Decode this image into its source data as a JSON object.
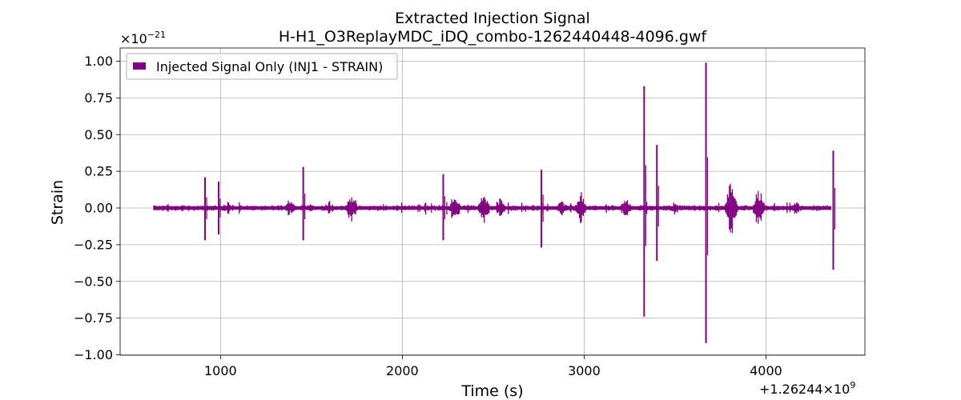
{
  "chart_data": {
    "type": "line",
    "title": "Extracted Injection Signal",
    "subtitle": "H-H1_O3ReplayMDC_iDQ_combo-1262440448-4096.gwf",
    "xlabel": "Time (s)",
    "ylabel": "Strain",
    "x_offset_label": "+1.26244×10",
    "x_offset_exponent": "9",
    "y_multiplier_label": "×10",
    "y_multiplier_exponent": "−21",
    "xlim": [
      448,
      4544
    ],
    "ylim": [
      -1.0,
      1.1
    ],
    "x_ticks": [
      1000,
      2000,
      3000,
      4000
    ],
    "x_tick_labels": [
      "1000",
      "2000",
      "3000",
      "4000"
    ],
    "y_ticks": [
      -1.0,
      -0.75,
      -0.5,
      -0.25,
      0.0,
      0.25,
      0.5,
      0.75,
      1.0
    ],
    "y_tick_labels": [
      "−1.00",
      "−0.75",
      "−0.50",
      "−0.25",
      "0.00",
      "0.25",
      "0.50",
      "0.75",
      "1.00"
    ],
    "grid": true,
    "legend_position": "top-left",
    "baseline_noise_amplitude": 0.012,
    "series": [
      {
        "name": "Injected Signal Only (INJ1 - STRAIN)",
        "color": "#800080",
        "spikes": [
          {
            "x": 915,
            "max": 0.21,
            "min": -0.22
          },
          {
            "x": 990,
            "max": 0.18,
            "min": -0.18
          },
          {
            "x": 1455,
            "max": 0.28,
            "min": -0.22
          },
          {
            "x": 2225,
            "max": 0.23,
            "min": -0.22
          },
          {
            "x": 2765,
            "max": 0.26,
            "min": -0.27
          },
          {
            "x": 3330,
            "max": 0.83,
            "min": -0.74
          },
          {
            "x": 3400,
            "max": 0.43,
            "min": -0.36
          },
          {
            "x": 3670,
            "max": 0.99,
            "min": -0.92
          },
          {
            "x": 4370,
            "max": 0.39,
            "min": -0.42
          }
        ],
        "bursts": [
          {
            "x": 600,
            "amp": 0.03
          },
          {
            "x": 1040,
            "amp": 0.04
          },
          {
            "x": 1380,
            "amp": 0.05
          },
          {
            "x": 1600,
            "amp": 0.05
          },
          {
            "x": 1720,
            "amp": 0.1
          },
          {
            "x": 2290,
            "amp": 0.1
          },
          {
            "x": 2450,
            "amp": 0.09
          },
          {
            "x": 2540,
            "amp": 0.07
          },
          {
            "x": 2880,
            "amp": 0.05
          },
          {
            "x": 2980,
            "amp": 0.1
          },
          {
            "x": 3230,
            "amp": 0.06
          },
          {
            "x": 3500,
            "amp": 0.04
          },
          {
            "x": 3810,
            "amp": 0.18
          },
          {
            "x": 3960,
            "amp": 0.12
          },
          {
            "x": 4160,
            "amp": 0.05
          },
          {
            "x": 4450,
            "amp": 0.04
          }
        ]
      }
    ]
  }
}
